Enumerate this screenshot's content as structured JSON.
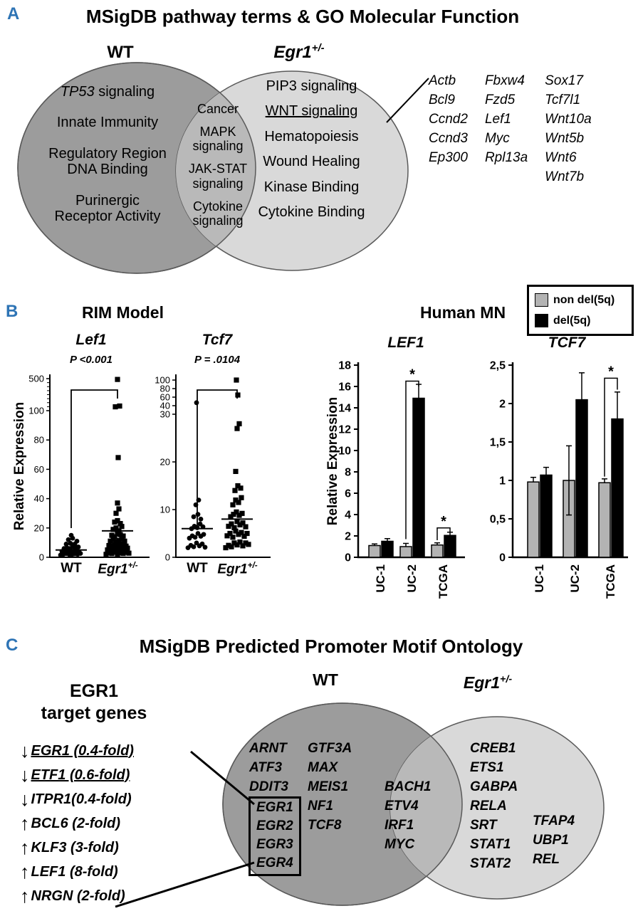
{
  "common": {
    "egr1_base": "Egr1",
    "egr1_sup": "+/-",
    "wt": "WT",
    "relative_expression": "Relative Expression"
  },
  "colors": {
    "panel_label": "#2e74b5",
    "venn_dark": "#9c9c9c",
    "venn_light": "#d9d9d9",
    "venn_overlap": "#b9b9b9",
    "bar_non_del": "#b3b3b3",
    "bar_del": "#000000"
  },
  "panel_a": {
    "label": "A",
    "title": "MSigDB pathway terms & GO Molecular Function",
    "wt_terms": [
      {
        "lines": [
          "TP53 signaling"
        ],
        "italic_first_word": true
      },
      {
        "lines": [
          "Innate Immunity"
        ]
      },
      {
        "lines": [
          "Regulatory Region",
          "DNA Binding"
        ]
      },
      {
        "lines": [
          "Purinergic",
          "Receptor Activity"
        ]
      }
    ],
    "shared_terms": [
      {
        "lines": [
          "Cancer"
        ]
      },
      {
        "lines": [
          "MAPK",
          "signaling"
        ]
      },
      {
        "lines": [
          "JAK-STAT",
          "signaling"
        ]
      },
      {
        "lines": [
          "Cytokine",
          "signaling"
        ]
      }
    ],
    "egr1_terms": [
      {
        "lines": [
          "PIP3 signaling"
        ]
      },
      {
        "lines": [
          "WNT signaling"
        ],
        "underline": true
      },
      {
        "lines": [
          "Hematopoiesis"
        ]
      },
      {
        "lines": [
          "Wound Healing"
        ]
      },
      {
        "lines": [
          "Kinase Binding"
        ]
      },
      {
        "lines": [
          "Cytokine Binding"
        ]
      }
    ],
    "wnt_gene_columns": [
      [
        "Actb",
        "Bcl9",
        "Ccnd2",
        "Ccnd3",
        "Ep300"
      ],
      [
        "Fbxw4",
        "Fzd5",
        "Lef1",
        "Myc",
        "Rpl13a"
      ],
      [
        "Sox17",
        "Tcf7l1",
        "Wnt10a",
        "Wnt5b",
        "Wnt6",
        "Wnt7b"
      ]
    ]
  },
  "panel_b": {
    "label": "B",
    "left_title": "RIM Model",
    "right_title": "Human MN",
    "legend": [
      {
        "label": "non del(5q)",
        "color": "#b3b3b3"
      },
      {
        "label": "del(5q)",
        "color": "#000000"
      }
    ]
  },
  "panel_c": {
    "label": "C",
    "title": "MSigDB Predicted Promoter Motif Ontology",
    "heading_line1": "EGR1",
    "heading_line2": "target genes",
    "target_genes": [
      {
        "direction": "down",
        "label": "EGR1 (0.4-fold)",
        "underline": true
      },
      {
        "direction": "down",
        "label": "ETF1 (0.6-fold)",
        "underline": true
      },
      {
        "direction": "down",
        "label": "ITPR1(0.4-fold)"
      },
      {
        "direction": "up",
        "label": "BCL6 (2-fold)"
      },
      {
        "direction": "up",
        "label": "KLF3 (3-fold)"
      },
      {
        "direction": "up",
        "label": "LEF1 (8-fold)"
      },
      {
        "direction": "up",
        "label": "NRGN (2-fold)"
      }
    ],
    "wt_col1": [
      "ARNT",
      "ATF3",
      "DDIT3"
    ],
    "wt_boxed": [
      "EGR1",
      "EGR2",
      "EGR3",
      "EGR4"
    ],
    "wt_col2": [
      "GTF3A",
      "MAX",
      "MEIS1",
      "NF1",
      "TCF8"
    ],
    "shared": [
      "BACH1",
      "ETV4",
      "IRF1",
      "MYC"
    ],
    "egr1_col1": [
      "CREB1",
      "ETS1",
      "GABPA",
      "RELA",
      "SRT",
      "STAT1",
      "STAT2"
    ],
    "egr1_col2": [
      "TFAP4",
      "UBP1",
      "REL"
    ]
  },
  "chart_data": [
    {
      "type": "scatter",
      "title": "Lef1",
      "p_label": "P <0.001",
      "ylabel": "Relative Expression",
      "axis_break": true,
      "ytick_values": [
        0,
        20,
        40,
        60,
        80,
        100,
        500
      ],
      "ytick_labels": [
        "0",
        "20",
        "40",
        "60",
        "80",
        "100",
        "500"
      ],
      "groups": [
        {
          "name": "WT",
          "marker": "circle",
          "mean": 5,
          "points": [
            [
              -15,
              1.5
            ],
            [
              -11,
              2
            ],
            [
              -7,
              2.5
            ],
            [
              -3,
              2
            ],
            [
              1,
              1.8
            ],
            [
              5,
              2.3
            ],
            [
              9,
              2
            ],
            [
              13,
              2.6
            ],
            [
              -13,
              4
            ],
            [
              -9,
              3.5
            ],
            [
              -5,
              4.5
            ],
            [
              -1,
              4
            ],
            [
              3,
              3.6
            ],
            [
              7,
              4.2
            ],
            [
              11,
              3.8
            ],
            [
              -10,
              6
            ],
            [
              -6,
              6.5
            ],
            [
              -2,
              6
            ],
            [
              2,
              7
            ],
            [
              6,
              6.2
            ],
            [
              10,
              7
            ],
            [
              -7,
              9
            ],
            [
              -1,
              9.5
            ],
            [
              5,
              9
            ],
            [
              -4,
              12
            ],
            [
              2,
              13
            ],
            [
              8,
              11
            ],
            [
              0,
              15
            ]
          ]
        },
        {
          "name": "Egr1+/-",
          "marker": "square",
          "mean": 18,
          "points": [
            [
              -16,
              2
            ],
            [
              -12,
              3
            ],
            [
              -8,
              2.5
            ],
            [
              -4,
              3.5
            ],
            [
              0,
              2.2
            ],
            [
              4,
              3
            ],
            [
              8,
              2.6
            ],
            [
              12,
              3.4
            ],
            [
              16,
              2.8
            ],
            [
              -14,
              5
            ],
            [
              -10,
              5.5
            ],
            [
              -6,
              4.8
            ],
            [
              -2,
              5.2
            ],
            [
              2,
              6
            ],
            [
              6,
              5
            ],
            [
              10,
              5.8
            ],
            [
              14,
              6.2
            ],
            [
              -12,
              8
            ],
            [
              -8,
              7.5
            ],
            [
              -4,
              8.5
            ],
            [
              0,
              7.8
            ],
            [
              4,
              8.2
            ],
            [
              8,
              9
            ],
            [
              12,
              7.6
            ],
            [
              -10,
              11
            ],
            [
              -6,
              12
            ],
            [
              -2,
              10.5
            ],
            [
              2,
              11.5
            ],
            [
              6,
              12.5
            ],
            [
              10,
              11
            ],
            [
              -8,
              15
            ],
            [
              -4,
              14
            ],
            [
              0,
              16
            ],
            [
              4,
              15.5
            ],
            [
              8,
              14.5
            ],
            [
              -6,
              19
            ],
            [
              -2,
              20
            ],
            [
              2,
              18
            ],
            [
              6,
              21
            ],
            [
              -4,
              24
            ],
            [
              0,
              25
            ],
            [
              4,
              23
            ],
            [
              -2,
              30
            ],
            [
              2,
              33
            ],
            [
              0,
              37
            ],
            [
              1,
              68
            ],
            [
              -3,
              148
            ],
            [
              3,
              158
            ],
            [
              0,
              490
            ]
          ]
        }
      ]
    },
    {
      "type": "scatter",
      "title": "Tcf7",
      "p_label": "P = .0104",
      "ylabel": "Relative Expression",
      "axis_break": true,
      "ytick_values": [
        0,
        10,
        20,
        30,
        40,
        60,
        80,
        100
      ],
      "ytick_labels": [
        "0",
        "10",
        "20",
        "30",
        "40",
        "60",
        "80",
        "100"
      ],
      "groups": [
        {
          "name": "WT",
          "marker": "circle",
          "mean": 6,
          "points": [
            [
              -13,
              2
            ],
            [
              -9,
              2.5
            ],
            [
              -5,
              2.2
            ],
            [
              -1,
              3
            ],
            [
              3,
              2.4
            ],
            [
              7,
              2.8
            ],
            [
              11,
              2.1
            ],
            [
              -11,
              4
            ],
            [
              -7,
              4.5
            ],
            [
              -3,
              4.2
            ],
            [
              1,
              5
            ],
            [
              5,
              4.4
            ],
            [
              9,
              4.8
            ],
            [
              -8,
              6
            ],
            [
              -4,
              6.5
            ],
            [
              0,
              6.2
            ],
            [
              4,
              7
            ],
            [
              8,
              6.4
            ],
            [
              -5,
              8.5
            ],
            [
              1,
              9
            ],
            [
              5,
              8
            ],
            [
              -2,
              11
            ],
            [
              2,
              12
            ],
            [
              -1,
              47
            ]
          ]
        },
        {
          "name": "Egr1+/-",
          "marker": "square",
          "mean": 8,
          "points": [
            [
              -16,
              2
            ],
            [
              -12,
              2.5
            ],
            [
              -8,
              2.2
            ],
            [
              -4,
              3
            ],
            [
              0,
              2.6
            ],
            [
              4,
              3.2
            ],
            [
              8,
              2.4
            ],
            [
              12,
              3
            ],
            [
              16,
              2.7
            ],
            [
              -14,
              4.5
            ],
            [
              -10,
              5
            ],
            [
              -6,
              4.2
            ],
            [
              -2,
              5.5
            ],
            [
              2,
              4.8
            ],
            [
              6,
              5.2
            ],
            [
              10,
              4.4
            ],
            [
              14,
              5
            ],
            [
              -12,
              6.5
            ],
            [
              -8,
              7
            ],
            [
              -4,
              6.2
            ],
            [
              0,
              7.5
            ],
            [
              4,
              6.8
            ],
            [
              8,
              7.2
            ],
            [
              12,
              6.4
            ],
            [
              -9,
              8.5
            ],
            [
              -5,
              9
            ],
            [
              -1,
              9.5
            ],
            [
              3,
              8.8
            ],
            [
              7,
              9.2
            ],
            [
              -6,
              11
            ],
            [
              -2,
              12
            ],
            [
              2,
              11.5
            ],
            [
              6,
              12.5
            ],
            [
              -3,
              14
            ],
            [
              1,
              15
            ],
            [
              5,
              14.5
            ],
            [
              -2,
              18
            ],
            [
              0,
              27
            ],
            [
              3,
              28
            ],
            [
              1,
              65
            ],
            [
              -1,
              102
            ]
          ]
        }
      ]
    },
    {
      "type": "bar",
      "title": "LEF1",
      "ylabel": "Relative Expression",
      "categories": [
        "UC-1",
        "UC-2",
        "TCGA"
      ],
      "ylim": [
        0,
        18
      ],
      "ytick_values": [
        0,
        2,
        4,
        6,
        8,
        10,
        12,
        14,
        16,
        18
      ],
      "ytick_labels": [
        "0",
        "2",
        "4",
        "6",
        "8",
        "10",
        "12",
        "14",
        "16",
        "18"
      ],
      "series": [
        {
          "name": "non del(5q)",
          "values": [
            1.1,
            1.0,
            1.15
          ],
          "errors": [
            0.15,
            0.3,
            0.2
          ]
        },
        {
          "name": "del(5q)",
          "values": [
            1.5,
            14.9,
            2.05
          ],
          "errors": [
            0.25,
            1.3,
            0.3
          ]
        }
      ],
      "significance": [
        {
          "category": "UC-2",
          "label": "*"
        },
        {
          "category": "TCGA",
          "label": "*"
        }
      ]
    },
    {
      "type": "bar",
      "title": "TCF7",
      "ylabel": "Relative Expression",
      "categories": [
        "UC-1",
        "UC-2",
        "TCGA"
      ],
      "ylim": [
        0,
        2.5
      ],
      "ytick_values": [
        0,
        0.5,
        1,
        1.5,
        2,
        2.5
      ],
      "ytick_labels": [
        "0",
        "0,5",
        "1",
        "1,5",
        "2",
        "2,5"
      ],
      "series": [
        {
          "name": "non del(5q)",
          "values": [
            0.98,
            1.0,
            0.97
          ],
          "errors": [
            0.06,
            0.45,
            0.05
          ],
          "errors_down": [
            0,
            0.45,
            0
          ]
        },
        {
          "name": "del(5q)",
          "values": [
            1.07,
            2.05,
            1.8
          ],
          "errors": [
            0.1,
            0.35,
            0.35
          ]
        }
      ],
      "significance": [
        {
          "category": "TCGA",
          "label": "*"
        }
      ]
    }
  ]
}
